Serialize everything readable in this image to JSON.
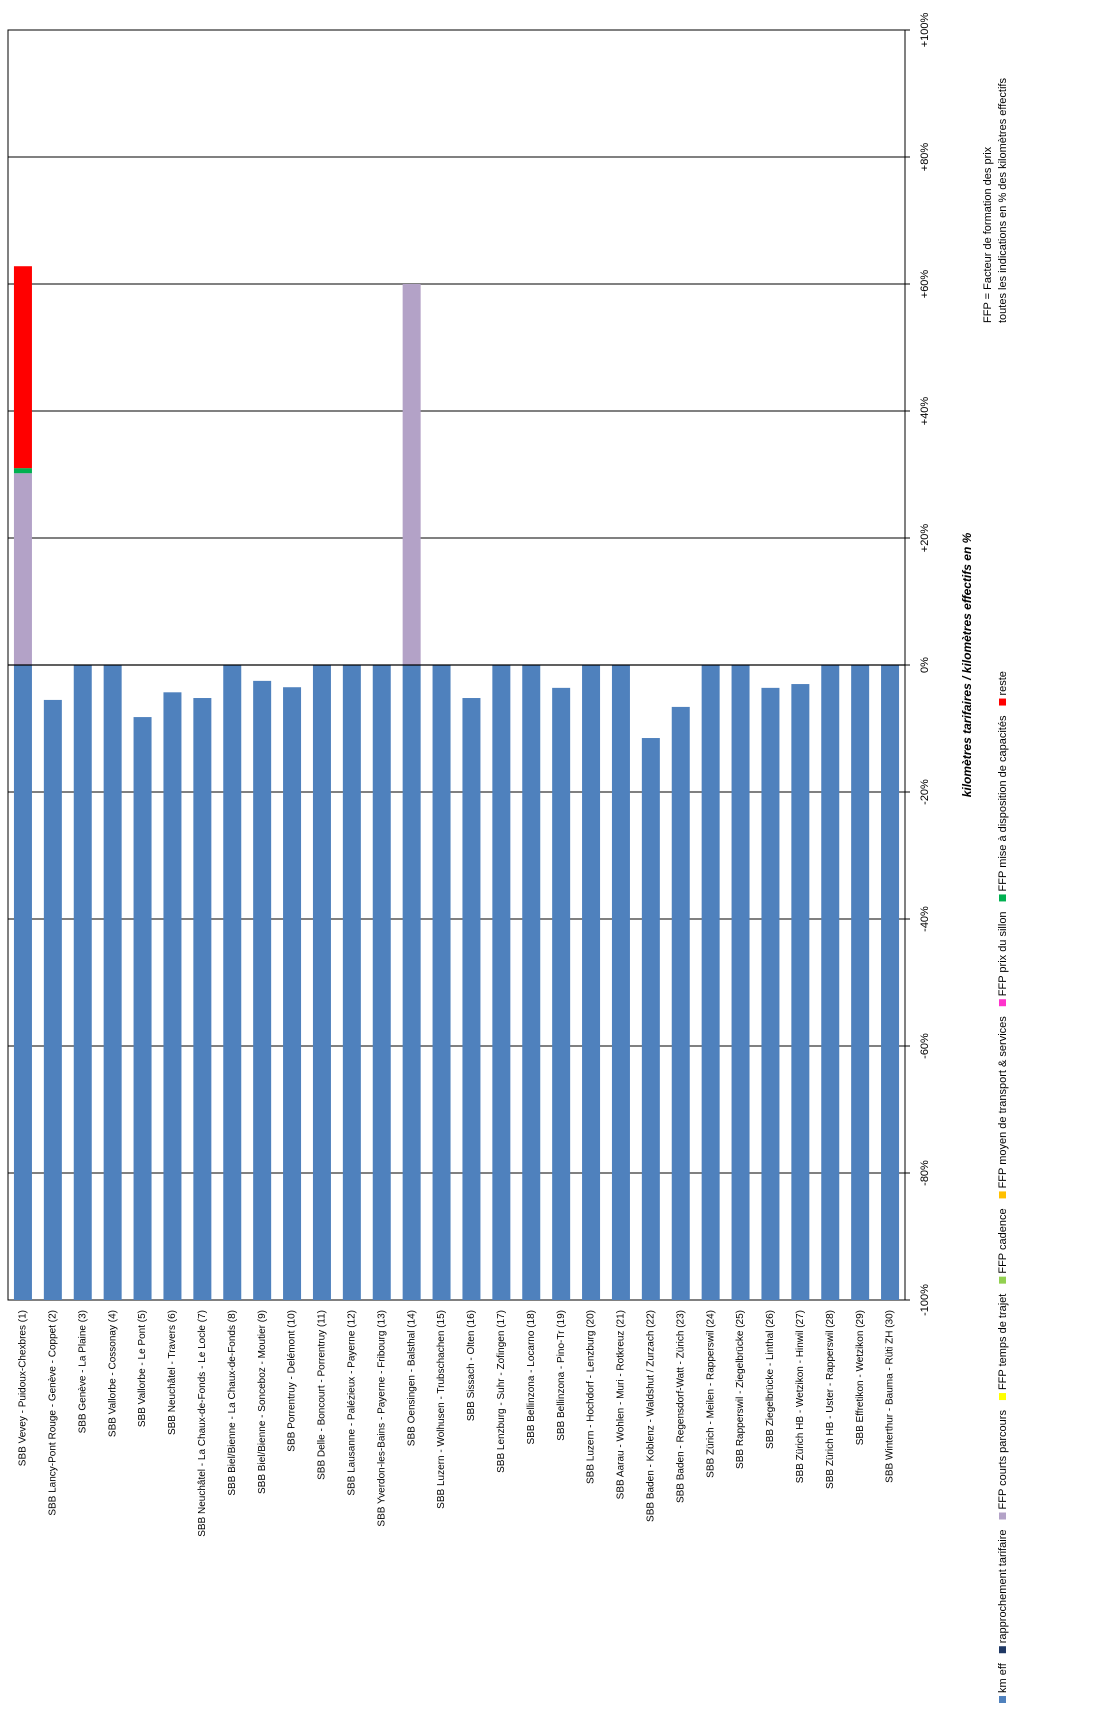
{
  "chart_data": {
    "type": "bar",
    "y_label": "kilomètres tarifaires / kilomètres effectifs en %",
    "notes": [
      "FFP = Facteur de formation des prix",
      "toutes les indications en % des kilomètres effectifs"
    ],
    "categories": [
      "SBB Vevey - Puidoux-Chexbres (1)",
      "SBB Lancy-Pont Rouge - Genève - Coppet (2)",
      "SBB Genève - La Plaine (3)",
      "SBB Vallorbe - Cossonay (4)",
      "SBB Vallorbe - Le Pont (5)",
      "SBB Neuchâtel - Travers (6)",
      "SBB Neuchâtel - La Chaux-de-Fonds - Le Locle (7)",
      "SBB Biel/Bienne - La Chaux-de-Fonds (8)",
      "SBB Biel/Bienne - Sonceboz - Moutier (9)",
      "SBB Porrentruy - Delémont (10)",
      "SBB Delle - Boncourt - Porrentruy (11)",
      "SBB Lausanne - Palézieux - Payerne (12)",
      "SBB Yverdon-les-Bains - Payerne - Fribourg (13)",
      "SBB Oensingen - Balsthal (14)",
      "SBB Luzern - Wolhusen - Trubschachen (15)",
      "SBB Sissach - Olten (16)",
      "SBB Lenzburg - Suhr - Zofingen (17)",
      "SBB Bellinzona - Locarno (18)",
      "SBB Bellinzona - Pino-Tr (19)",
      "SBB Luzern - Hochdorf - Lenzburg (20)",
      "SBB Aarau - Wohlen - Muri - Rotkreuz (21)",
      "SBB Baden - Koblenz - Waldshut / Zurzach (22)",
      "SBB Baden - Regensdorf-Watt - Zürich (23)",
      "SBB Zürich - Meilen - Rapperswil (24)",
      "SBB Rapperswil - Ziegelbrücke (25)",
      "SBB Ziegelbrücke - Linthal (26)",
      "SBB Zürich HB - Wetzikon - Hinwil (27)",
      "SBB Zürich HB - Uster - Rapperswil (28)",
      "SBB Effretikon - Wetzikon (29)",
      "SBB Winterthur - Bauma - Rüti ZH (30)"
    ],
    "series": [
      {
        "name": "km eff",
        "color": "#4f81bd",
        "values": [
          0,
          -5.5,
          0,
          0,
          -8.2,
          -4.3,
          -5.2,
          0,
          -2.5,
          -3.5,
          0,
          0,
          0,
          0,
          0,
          -5.2,
          0,
          0,
          -3.6,
          0,
          0,
          -11.5,
          -6.6,
          0,
          0,
          -3.6,
          -3,
          0,
          0,
          0
        ]
      },
      {
        "name": "rapprochement tarifaire",
        "color": "#1f3864",
        "values": [
          0,
          0,
          0,
          0,
          0,
          0,
          0,
          0,
          0,
          0,
          0,
          0,
          0,
          0,
          0,
          0,
          0,
          0,
          0,
          0,
          0,
          0,
          0,
          0,
          0,
          0,
          0,
          0,
          0,
          0
        ]
      },
      {
        "name": "FFP courts parcours",
        "color": "#b3a2c7",
        "values": [
          30.2,
          0,
          0,
          0,
          0,
          0,
          0,
          0,
          0,
          0,
          0,
          0,
          0,
          60,
          0,
          0,
          0,
          0,
          0,
          0,
          0,
          0,
          0,
          0,
          0,
          0,
          0,
          0,
          0,
          0
        ]
      },
      {
        "name": "FFP temps de trajet",
        "color": "#ffff00",
        "values": [
          0,
          0,
          0,
          0,
          0,
          0,
          0,
          0,
          0,
          0,
          0,
          0,
          0,
          0,
          0,
          0,
          0,
          0,
          0,
          0,
          0,
          0,
          0,
          0,
          0,
          0,
          0,
          0,
          0,
          0
        ]
      },
      {
        "name": "FFP cadence",
        "color": "#92d050",
        "values": [
          0,
          0,
          0,
          0,
          0,
          0,
          0,
          0,
          0,
          0,
          0,
          0,
          0,
          0,
          0,
          0,
          0,
          0,
          0,
          0,
          0,
          0,
          0,
          0,
          0,
          0,
          0,
          0,
          0,
          0
        ]
      },
      {
        "name": "FFP moyen de transport & services",
        "color": "#ffc000",
        "values": [
          0,
          0,
          0,
          0,
          0,
          0,
          0,
          0,
          0,
          0,
          0,
          0,
          0,
          0,
          0,
          0,
          0,
          0,
          0,
          0,
          0,
          0,
          0,
          0,
          0,
          0,
          0,
          0,
          0,
          0
        ]
      },
      {
        "name": "FFP prix du sillon",
        "color": "#ff33cc",
        "values": [
          0,
          0,
          0,
          0,
          0,
          0,
          0,
          0,
          0,
          0,
          0,
          0,
          0,
          0,
          0,
          0,
          0,
          0,
          0,
          0,
          0,
          0,
          0,
          0,
          0,
          0,
          0,
          0,
          0,
          0
        ]
      },
      {
        "name": "FFP mise à disposition de capacités",
        "color": "#00b050",
        "values": [
          0.8,
          0,
          0,
          0,
          0,
          0,
          0,
          0,
          0,
          0,
          0,
          0,
          0,
          0,
          0,
          0,
          0,
          0,
          0,
          0,
          0,
          0,
          0,
          0,
          0,
          0,
          0,
          0,
          0,
          0
        ]
      },
      {
        "name": "reste",
        "color": "#ff0000",
        "values": [
          31.8,
          0,
          0,
          0,
          0,
          0,
          0,
          0,
          0,
          0,
          0,
          0,
          0,
          0,
          0,
          0,
          0,
          0,
          0,
          0,
          0,
          0,
          0,
          0,
          0,
          0,
          0,
          0,
          0,
          0
        ]
      }
    ],
    "ylim": [
      -100,
      100
    ],
    "yticks": [
      {
        "value": -100,
        "label": "-100%"
      },
      {
        "value": -80,
        "label": "-80%"
      },
      {
        "value": -60,
        "label": "-60%"
      },
      {
        "value": -40,
        "label": "-40%"
      },
      {
        "value": -20,
        "label": "-20%"
      },
      {
        "value": 0,
        "label": "0%"
      },
      {
        "value": 20,
        "label": "+20%"
      },
      {
        "value": 40,
        "label": "+40%"
      },
      {
        "value": 60,
        "label": "+60%"
      },
      {
        "value": 80,
        "label": "+80%"
      },
      {
        "value": 100,
        "label": "+100%"
      }
    ],
    "grid": true
  }
}
